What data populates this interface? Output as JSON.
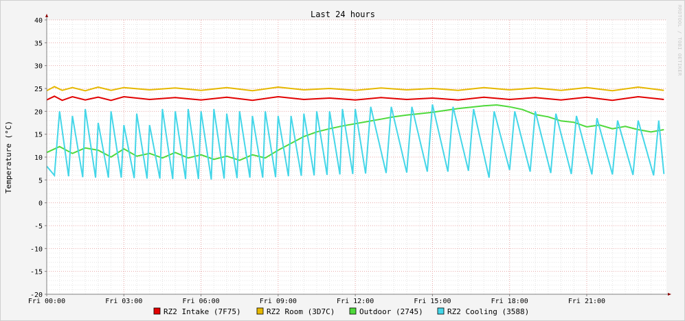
{
  "chart_data": {
    "type": "line",
    "title": "Last 24 hours",
    "ylabel": "Temperature (°C)",
    "xlabel": "",
    "side_label": "RRDTOOL / TOBI OETIKER",
    "ylim": [
      -20,
      40
    ],
    "y_ticks": [
      40,
      35,
      30,
      25,
      20,
      15,
      10,
      5,
      0,
      -5,
      -10,
      -15,
      -20
    ],
    "x_ticks": [
      {
        "hour": 0,
        "label": "Fri 00:00"
      },
      {
        "hour": 3,
        "label": "Fri 03:00"
      },
      {
        "hour": 6,
        "label": "Fri 06:00"
      },
      {
        "hour": 9,
        "label": "Fri 09:00"
      },
      {
        "hour": 12,
        "label": "Fri 12:00"
      },
      {
        "hour": 15,
        "label": "Fri 15:00"
      },
      {
        "hour": 18,
        "label": "Fri 18:00"
      },
      {
        "hour": 21,
        "label": "Fri 21:00"
      }
    ],
    "xlim_hours": [
      0,
      24.1
    ],
    "grid": true,
    "legend_position": "bottom",
    "series": [
      {
        "name": "RZ2 Intake (7F75)",
        "color": "#e20000",
        "x": [
          0.0,
          0.3,
          0.6,
          1.0,
          1.5,
          2.0,
          2.5,
          3.0,
          4.0,
          5.0,
          6.0,
          7.0,
          8.0,
          9.0,
          10.0,
          11.0,
          12.0,
          13.0,
          14.0,
          15.0,
          16.0,
          17.0,
          18.0,
          19.0,
          20.0,
          21.0,
          22.0,
          23.0,
          24.0
        ],
        "y": [
          22.5,
          23.3,
          22.4,
          23.2,
          22.5,
          23.1,
          22.4,
          23.2,
          22.6,
          23.0,
          22.5,
          23.1,
          22.4,
          23.2,
          22.6,
          22.9,
          22.5,
          23.0,
          22.6,
          22.9,
          22.5,
          23.1,
          22.6,
          23.0,
          22.5,
          23.1,
          22.4,
          23.2,
          22.6
        ]
      },
      {
        "name": "RZ2 Room (3D7C)",
        "color": "#e6b800",
        "x": [
          0.0,
          0.3,
          0.6,
          1.0,
          1.5,
          2.0,
          2.5,
          3.0,
          4.0,
          5.0,
          6.0,
          7.0,
          8.0,
          9.0,
          10.0,
          11.0,
          12.0,
          13.0,
          14.0,
          15.0,
          16.0,
          17.0,
          18.0,
          19.0,
          20.0,
          21.0,
          22.0,
          23.0,
          24.0
        ],
        "y": [
          24.5,
          25.4,
          24.6,
          25.2,
          24.5,
          25.3,
          24.6,
          25.2,
          24.7,
          25.1,
          24.6,
          25.2,
          24.5,
          25.3,
          24.7,
          25.0,
          24.6,
          25.1,
          24.7,
          25.0,
          24.6,
          25.2,
          24.7,
          25.1,
          24.6,
          25.2,
          24.5,
          25.3,
          24.6
        ]
      },
      {
        "name": "Outdoor (2745)",
        "color": "#4ed93a",
        "x": [
          0.0,
          0.5,
          1.0,
          1.5,
          2.0,
          2.5,
          3.0,
          3.5,
          4.0,
          4.5,
          5.0,
          5.5,
          6.0,
          6.5,
          7.0,
          7.5,
          8.0,
          8.5,
          9.0,
          9.5,
          10.0,
          10.5,
          11.0,
          11.5,
          12.0,
          12.5,
          13.0,
          13.5,
          14.0,
          14.5,
          15.0,
          15.5,
          16.0,
          16.5,
          17.0,
          17.5,
          18.0,
          18.5,
          19.0,
          19.5,
          20.0,
          20.5,
          21.0,
          21.5,
          22.0,
          22.5,
          23.0,
          23.5,
          24.0
        ],
        "y": [
          11.0,
          12.3,
          10.8,
          12.0,
          11.5,
          10.0,
          11.8,
          10.2,
          10.8,
          9.8,
          11.0,
          9.8,
          10.5,
          9.5,
          10.2,
          9.3,
          10.5,
          9.8,
          11.5,
          13.0,
          14.5,
          15.5,
          16.2,
          16.8,
          17.3,
          17.8,
          18.3,
          18.8,
          19.2,
          19.5,
          19.8,
          20.2,
          20.6,
          20.9,
          21.2,
          21.4,
          21.0,
          20.4,
          19.3,
          18.8,
          17.9,
          17.6,
          16.6,
          17.0,
          16.2,
          16.7,
          16.0,
          15.5,
          16.0
        ]
      },
      {
        "name": "RZ2 Cooling (3588)",
        "color": "#44d6e8",
        "x": [
          0.0,
          0.3,
          0.5,
          0.85,
          1.0,
          1.4,
          1.5,
          1.9,
          2.0,
          2.4,
          2.5,
          2.9,
          3.0,
          3.4,
          3.5,
          3.9,
          4.0,
          4.4,
          4.5,
          4.9,
          5.0,
          5.4,
          5.5,
          5.9,
          6.0,
          6.4,
          6.5,
          6.9,
          7.0,
          7.4,
          7.5,
          7.9,
          8.0,
          8.4,
          8.5,
          8.9,
          9.0,
          9.4,
          9.5,
          9.9,
          10.0,
          10.4,
          10.5,
          10.9,
          11.0,
          11.4,
          11.5,
          11.9,
          12.0,
          12.4,
          12.6,
          13.2,
          13.4,
          14.0,
          14.2,
          14.8,
          15.0,
          15.6,
          15.8,
          16.4,
          16.6,
          17.2,
          17.4,
          18.0,
          18.2,
          18.8,
          19.0,
          19.6,
          19.8,
          20.4,
          20.6,
          21.2,
          21.4,
          22.0,
          22.2,
          22.8,
          23.0,
          23.6,
          23.8,
          24.0
        ],
        "y": [
          8.0,
          6.0,
          20.0,
          5.8,
          19.0,
          5.6,
          20.5,
          5.5,
          17.5,
          5.5,
          20.0,
          5.5,
          17.0,
          5.4,
          19.5,
          5.3,
          17.0,
          5.3,
          20.5,
          5.2,
          20.0,
          5.2,
          20.5,
          5.2,
          20.0,
          5.1,
          20.5,
          5.3,
          19.5,
          5.4,
          20.0,
          5.5,
          19.0,
          5.5,
          20.0,
          5.6,
          19.0,
          5.8,
          19.0,
          5.9,
          19.5,
          6.0,
          20.0,
          6.1,
          20.0,
          6.2,
          20.5,
          6.3,
          20.5,
          6.4,
          21.0,
          6.5,
          21.0,
          6.6,
          21.0,
          6.8,
          21.5,
          6.8,
          21.0,
          7.0,
          20.5,
          5.5,
          20.0,
          7.2,
          20.0,
          6.8,
          20.0,
          6.5,
          19.5,
          6.3,
          19.0,
          6.2,
          18.5,
          6.2,
          18.0,
          6.1,
          18.0,
          6.0,
          18.0,
          6.3
        ]
      }
    ]
  }
}
